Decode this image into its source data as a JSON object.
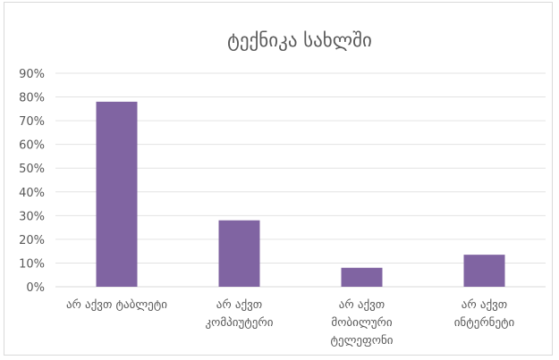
{
  "chart_data": {
    "type": "bar",
    "title": "ტექნიკა სახლში",
    "categories": [
      [
        "არ აქვთ ტაბლეტი"
      ],
      [
        "არ აქვთ",
        "კომპიუტერი"
      ],
      [
        "არ აქვთ",
        "მობილური",
        "ტელეფონი"
      ],
      [
        "არ აქვთ",
        "ინტერნეტი"
      ]
    ],
    "values": [
      78,
      28,
      8,
      13.5
    ],
    "unit": "%",
    "ylim": [
      0,
      90
    ],
    "yticks": [
      "0%",
      "10%",
      "20%",
      "30%",
      "40%",
      "50%",
      "60%",
      "70%",
      "80%",
      "90%"
    ],
    "bar_color": "#8064a2",
    "grid": true,
    "legend": "none"
  }
}
